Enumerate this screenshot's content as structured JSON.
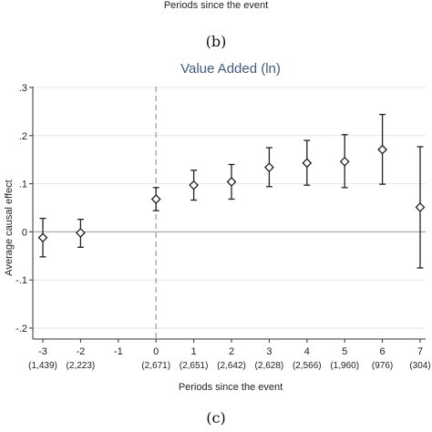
{
  "top_panel": {
    "xlabel": "Periods since the event"
  },
  "captions": {
    "b": "(b)",
    "c": "(c)"
  },
  "chart_data": {
    "type": "scatter",
    "title": "Value Added (ln)",
    "xlabel": "Periods since the event",
    "ylabel": "Average causal effect",
    "xlim": [
      -3,
      7
    ],
    "ylim": [
      -0.2,
      0.3
    ],
    "yticks": [
      ".3",
      ".2",
      ".1",
      "0",
      "-.1",
      "-.2"
    ],
    "ytick_values": [
      0.3,
      0.2,
      0.1,
      0,
      -0.1,
      -0.2
    ],
    "xtick_labels": [
      "-3",
      "-2",
      "-1",
      "0",
      "1",
      "2",
      "3",
      "4",
      "5",
      "6",
      "7"
    ],
    "xtick_counts": [
      "(1,439)",
      "(2,223)",
      "",
      "(2,671)",
      "(2,651)",
      "(2,642)",
      "(2,628)",
      "(2,566)",
      "(1,960)",
      "(976)",
      "(304)"
    ],
    "reference_lines": {
      "x": 0,
      "y": 0
    },
    "grid": "horizontal",
    "points": [
      {
        "x": -3,
        "y": -0.012,
        "lo": -0.052,
        "hi": 0.028
      },
      {
        "x": -2,
        "y": -0.002,
        "lo": -0.032,
        "hi": 0.026
      },
      {
        "x": 0,
        "y": 0.068,
        "lo": 0.044,
        "hi": 0.092
      },
      {
        "x": 1,
        "y": 0.097,
        "lo": 0.066,
        "hi": 0.128
      },
      {
        "x": 2,
        "y": 0.104,
        "lo": 0.068,
        "hi": 0.14
      },
      {
        "x": 3,
        "y": 0.134,
        "lo": 0.094,
        "hi": 0.175
      },
      {
        "x": 4,
        "y": 0.143,
        "lo": 0.097,
        "hi": 0.19
      },
      {
        "x": 5,
        "y": 0.146,
        "lo": 0.092,
        "hi": 0.202
      },
      {
        "x": 6,
        "y": 0.171,
        "lo": 0.099,
        "hi": 0.244
      },
      {
        "x": 7,
        "y": 0.051,
        "lo": -0.075,
        "hi": 0.177
      }
    ],
    "colors": {
      "title": "#3c5a8a",
      "marker": "#222222",
      "grid": "#e6e6e6",
      "zero_line": "#9a9a9a",
      "event_line": "#9a9a9a"
    }
  }
}
